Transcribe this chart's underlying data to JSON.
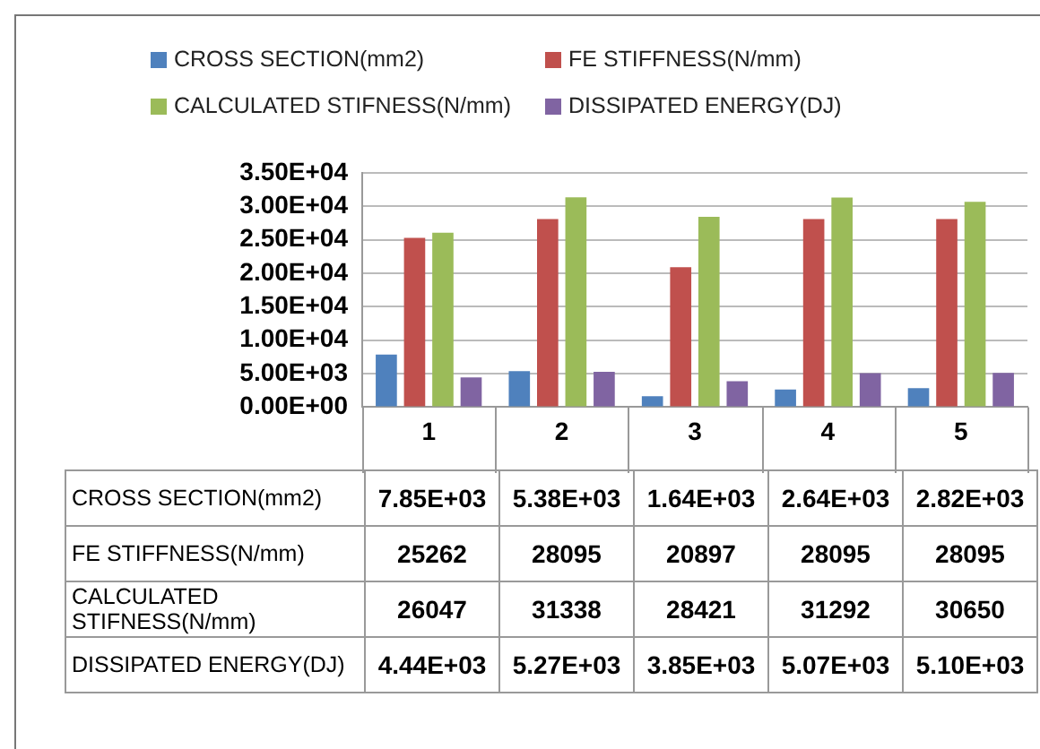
{
  "chart_data": {
    "type": "bar",
    "categories": [
      "1",
      "2",
      "3",
      "4",
      "5"
    ],
    "series": [
      {
        "name": "CROSS SECTION(mm2)",
        "color": "#4f81bd",
        "values": [
          7850,
          5380,
          1640,
          2640,
          2820
        ],
        "value_labels": [
          "7.85E+03",
          "5.38E+03",
          "1.64E+03",
          "2.64E+03",
          "2.82E+03"
        ]
      },
      {
        "name": "FE STIFFNESS(N/mm)",
        "color": "#c0504d",
        "values": [
          25262,
          28095,
          20897,
          28095,
          28095
        ],
        "value_labels": [
          "25262",
          "28095",
          "20897",
          "28095",
          "28095"
        ]
      },
      {
        "name": "CALCULATED STIFNESS(N/mm)",
        "color": "#9bbb59",
        "values": [
          26047,
          31338,
          28421,
          31292,
          30650
        ],
        "value_labels": [
          "26047",
          "31338",
          "28421",
          "31292",
          "30650"
        ]
      },
      {
        "name": "DISSIPATED ENERGY(DJ)",
        "color": "#8064a2",
        "values": [
          4440,
          5270,
          3850,
          5070,
          5100
        ],
        "value_labels": [
          "4.44E+03",
          "5.27E+03",
          "3.85E+03",
          "5.07E+03",
          "5.10E+03"
        ]
      }
    ],
    "ylim": [
      0,
      35000
    ],
    "yticks": [
      {
        "value": 0,
        "label": "0.00E+00"
      },
      {
        "value": 5000,
        "label": "5.00E+03"
      },
      {
        "value": 10000,
        "label": "1.00E+04"
      },
      {
        "value": 15000,
        "label": "1.50E+04"
      },
      {
        "value": 20000,
        "label": "2.00E+04"
      },
      {
        "value": 25000,
        "label": "2.50E+04"
      },
      {
        "value": 30000,
        "label": "3.00E+04"
      },
      {
        "value": 35000,
        "label": "3.50E+04"
      }
    ],
    "grid": "y",
    "legend": "top"
  }
}
